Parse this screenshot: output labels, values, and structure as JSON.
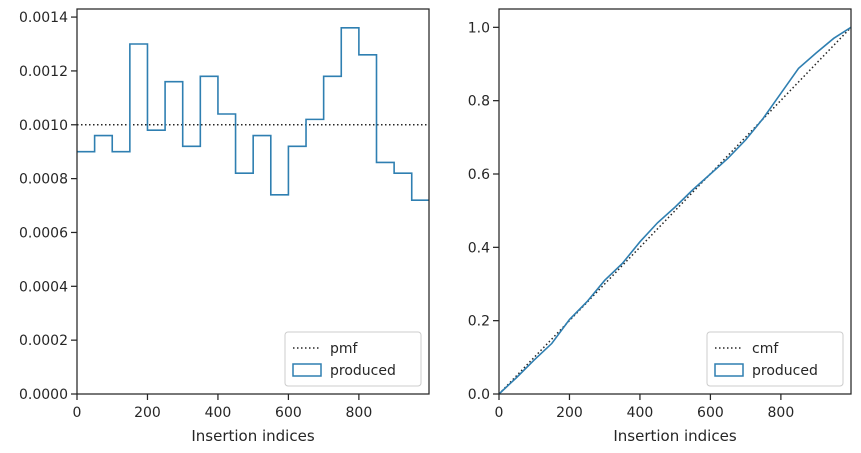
{
  "chart_data": [
    {
      "type": "line",
      "xlabel": "Insertion indices",
      "ylabel": "",
      "xlim": [
        0,
        999
      ],
      "ylim": [
        0,
        0.00143
      ],
      "xticks": [
        0,
        200,
        400,
        600,
        800
      ],
      "xtick_labels": [
        "0",
        "200",
        "400",
        "600",
        "800"
      ],
      "yticks": [
        0,
        0.0002,
        0.0004,
        0.0006,
        0.0008,
        0.001,
        0.0012,
        0.0014
      ],
      "ytick_labels": [
        "0.0000",
        "0.0002",
        "0.0004",
        "0.0006",
        "0.0008",
        "0.0010",
        "0.0012",
        "0.0014"
      ],
      "legend_position": "lower-right",
      "series": [
        {
          "name": "pmf",
          "style": "dotted",
          "color": "#262626",
          "x": [
            0,
            999
          ],
          "y": [
            0.001,
            0.001
          ]
        },
        {
          "name": "produced",
          "style": "step-histogram",
          "color": "#2f7fb1",
          "bin_edges": [
            0,
            50,
            100,
            150,
            200,
            250,
            300,
            350,
            400,
            450,
            500,
            550,
            600,
            650,
            700,
            750,
            800,
            850,
            900,
            950,
            999
          ],
          "values": [
            0.0009,
            0.00096,
            0.0009,
            0.0013,
            0.00098,
            0.00116,
            0.00092,
            0.00118,
            0.00104,
            0.00082,
            0.00096,
            0.00074,
            0.00092,
            0.00102,
            0.00118,
            0.00136,
            0.00126,
            0.00086,
            0.00082,
            0.00072
          ]
        }
      ]
    },
    {
      "type": "line",
      "xlabel": "Insertion indices",
      "ylabel": "",
      "xlim": [
        0,
        999
      ],
      "ylim": [
        0,
        1.05
      ],
      "xticks": [
        0,
        200,
        400,
        600,
        800
      ],
      "xtick_labels": [
        "0",
        "200",
        "400",
        "600",
        "800"
      ],
      "yticks": [
        0,
        0.2,
        0.4,
        0.6,
        0.8,
        1.0
      ],
      "ytick_labels": [
        "0.0",
        "0.2",
        "0.4",
        "0.6",
        "0.8",
        "1.0"
      ],
      "legend_position": "lower-right",
      "series": [
        {
          "name": "cmf",
          "style": "dotted",
          "color": "#262626",
          "x": [
            0,
            999
          ],
          "y": [
            0,
            1.0
          ]
        },
        {
          "name": "produced",
          "style": "line",
          "color": "#2f7fb1",
          "x": [
            0,
            50,
            100,
            150,
            200,
            250,
            300,
            350,
            400,
            450,
            500,
            550,
            600,
            650,
            700,
            750,
            800,
            850,
            900,
            950,
            999
          ],
          "y": [
            0,
            0.045,
            0.093,
            0.138,
            0.203,
            0.252,
            0.31,
            0.356,
            0.415,
            0.467,
            0.51,
            0.557,
            0.6,
            0.643,
            0.693,
            0.752,
            0.82,
            0.888,
            0.93,
            0.97,
            1.0
          ]
        }
      ]
    }
  ]
}
